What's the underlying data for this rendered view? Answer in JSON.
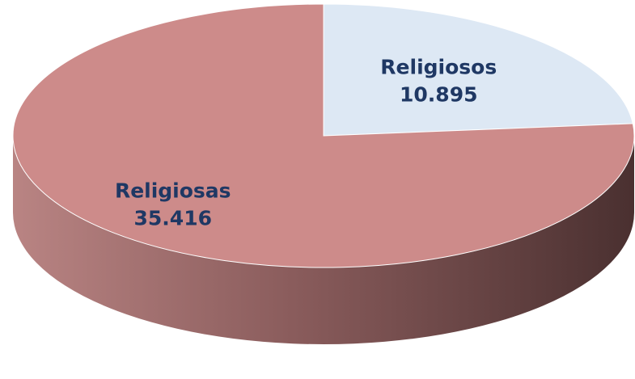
{
  "chart_data": {
    "type": "pie",
    "categories": [
      "Religiosos",
      "Religiosas"
    ],
    "values": [
      10895,
      35416
    ],
    "value_labels": [
      "10.895",
      "35.416"
    ],
    "colors": [
      "#dde8f4",
      "#cd8b8a"
    ]
  }
}
